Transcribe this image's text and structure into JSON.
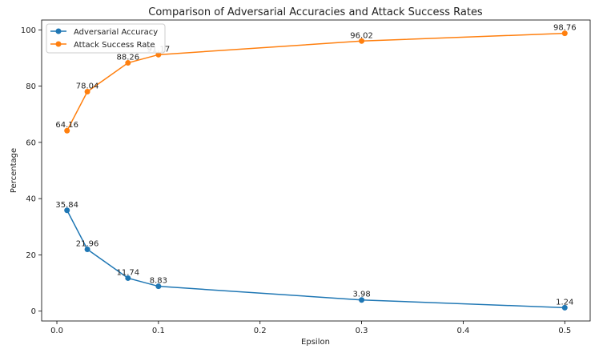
{
  "chart_data": {
    "type": "line",
    "title": "Comparison of Adversarial Accuracies and Attack Success Rates",
    "xlabel": "Epsilon",
    "ylabel": "Percentage",
    "x": [
      0.01,
      0.03,
      0.07,
      0.1,
      0.3,
      0.5
    ],
    "xlim": [
      -0.015,
      0.525
    ],
    "ylim": [
      -3.5,
      103.5
    ],
    "xticks": [
      "0.0",
      "0.1",
      "0.2",
      "0.3",
      "0.4",
      "0.5"
    ],
    "yticks": [
      "0",
      "20",
      "40",
      "60",
      "80",
      "100"
    ],
    "grid": false,
    "legend_position": "top-left",
    "series": [
      {
        "name": "Adversarial Accuracy",
        "color": "#1f77b4",
        "values": [
          35.84,
          21.96,
          11.74,
          8.83,
          3.98,
          1.24
        ],
        "labels": [
          "35.84",
          "21.96",
          "11.74",
          "8.83",
          "3.98",
          "1.24"
        ]
      },
      {
        "name": "Attack Success Rate",
        "color": "#ff7f0e",
        "values": [
          64.16,
          78.04,
          88.26,
          91.17,
          96.02,
          98.76
        ],
        "labels": [
          "64.16",
          "78.04",
          "88.26",
          "91.17",
          "96.02",
          "98.76"
        ]
      }
    ]
  }
}
